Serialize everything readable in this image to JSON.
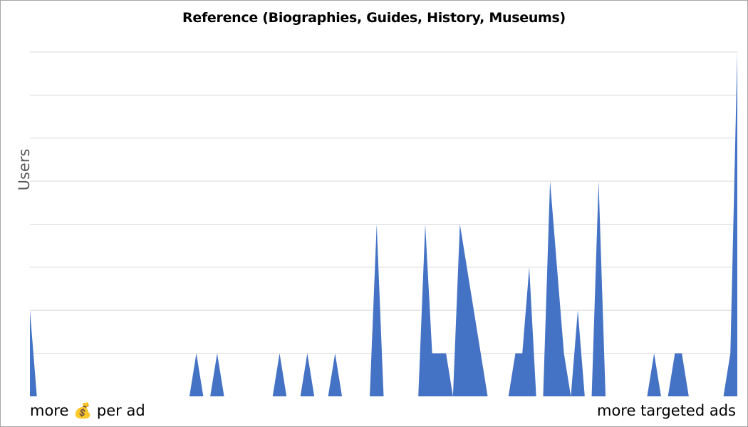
{
  "chart_data": {
    "type": "area",
    "title": "Reference (Biographies, Guides, History, Museums)",
    "ylabel": "Users",
    "x_start_label": "more 💰 per ad",
    "x_end_label": "more targeted ads",
    "ylim": [
      0,
      8
    ],
    "grid": true,
    "series_color": "#4472c4",
    "values": [
      2,
      0,
      0,
      0,
      0,
      0,
      0,
      0,
      0,
      0,
      0,
      0,
      0,
      0,
      0,
      0,
      0,
      0,
      0,
      0,
      0,
      0,
      0,
      0,
      1,
      0,
      0,
      1,
      0,
      0,
      0,
      0,
      0,
      0,
      0,
      0,
      1,
      0,
      0,
      0,
      1,
      0,
      0,
      0,
      1,
      0,
      0,
      0,
      0,
      0,
      4,
      0,
      0,
      0,
      0,
      0,
      0,
      4,
      1,
      1,
      1,
      0,
      4,
      3,
      2,
      1,
      0,
      0,
      0,
      0,
      1,
      1,
      3,
      0,
      0,
      5,
      3,
      1,
      0,
      2,
      0,
      0,
      5,
      0,
      0,
      0,
      0,
      0,
      0,
      0,
      1,
      0,
      0,
      1,
      1,
      0,
      0,
      0,
      0,
      0,
      0,
      1,
      8
    ]
  }
}
